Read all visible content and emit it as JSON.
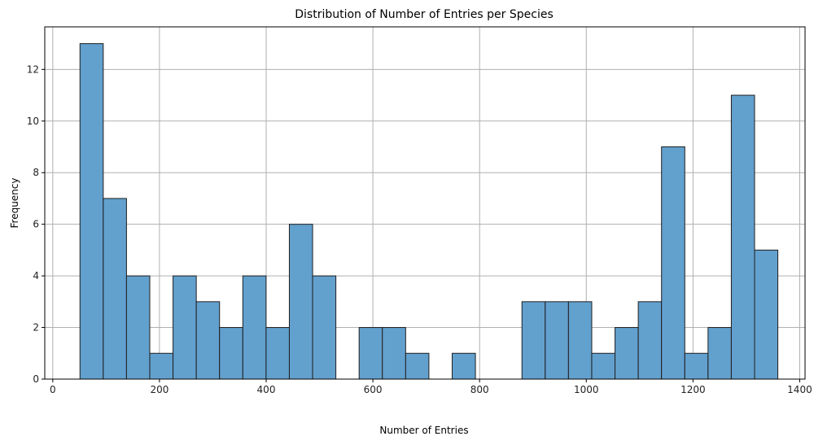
{
  "chart_data": {
    "type": "bar",
    "title": "Distribution of Number of Entries per Species",
    "xlabel": "Number of Entries",
    "ylabel": "Frequency",
    "xlim": [
      -15,
      1410
    ],
    "ylim": [
      0,
      13.65
    ],
    "grid": true,
    "bar_color": "#62a0ce",
    "edge_color": "#1f1f1f",
    "x_ticks": [
      {
        "value": 0,
        "label": "0"
      },
      {
        "value": 200,
        "label": "200"
      },
      {
        "value": 400,
        "label": "400"
      },
      {
        "value": 600,
        "label": "600"
      },
      {
        "value": 800,
        "label": "800"
      },
      {
        "value": 1000,
        "label": "1000"
      },
      {
        "value": 1200,
        "label": "1200"
      },
      {
        "value": 1400,
        "label": "1400"
      }
    ],
    "y_ticks": [
      {
        "value": 0,
        "label": "0"
      },
      {
        "value": 2,
        "label": "2"
      },
      {
        "value": 4,
        "label": "4"
      },
      {
        "value": 6,
        "label": "6"
      },
      {
        "value": 8,
        "label": "8"
      },
      {
        "value": 10,
        "label": "10"
      },
      {
        "value": 12,
        "label": "12"
      }
    ],
    "bins": [
      {
        "start": 51,
        "end": 94.6,
        "value": 13
      },
      {
        "start": 94.6,
        "end": 138.2,
        "value": 7
      },
      {
        "start": 138.2,
        "end": 181.8,
        "value": 4
      },
      {
        "start": 181.8,
        "end": 225.4,
        "value": 1
      },
      {
        "start": 225.4,
        "end": 269,
        "value": 4
      },
      {
        "start": 269,
        "end": 312.6,
        "value": 3
      },
      {
        "start": 312.6,
        "end": 356.2,
        "value": 2
      },
      {
        "start": 356.2,
        "end": 399.8,
        "value": 4
      },
      {
        "start": 399.8,
        "end": 443.4,
        "value": 2
      },
      {
        "start": 443.4,
        "end": 487,
        "value": 6
      },
      {
        "start": 487,
        "end": 530.6,
        "value": 4
      },
      {
        "start": 530.6,
        "end": 574.2,
        "value": 0
      },
      {
        "start": 574.2,
        "end": 617.8,
        "value": 2
      },
      {
        "start": 617.8,
        "end": 661.4,
        "value": 2
      },
      {
        "start": 661.4,
        "end": 705,
        "value": 1
      },
      {
        "start": 705,
        "end": 748.6,
        "value": 0
      },
      {
        "start": 748.6,
        "end": 792.2,
        "value": 1
      },
      {
        "start": 792.2,
        "end": 835.8,
        "value": 0
      },
      {
        "start": 835.8,
        "end": 879.4,
        "value": 0
      },
      {
        "start": 879.4,
        "end": 923,
        "value": 3
      },
      {
        "start": 923,
        "end": 966.6,
        "value": 3
      },
      {
        "start": 966.6,
        "end": 1010.2,
        "value": 3
      },
      {
        "start": 1010.2,
        "end": 1053.8,
        "value": 1
      },
      {
        "start": 1053.8,
        "end": 1097.4,
        "value": 2
      },
      {
        "start": 1097.4,
        "end": 1141,
        "value": 3
      },
      {
        "start": 1141,
        "end": 1184.6,
        "value": 9
      },
      {
        "start": 1184.6,
        "end": 1228.2,
        "value": 1
      },
      {
        "start": 1228.2,
        "end": 1271.8,
        "value": 2
      },
      {
        "start": 1271.8,
        "end": 1315.4,
        "value": 11
      },
      {
        "start": 1315.4,
        "end": 1359,
        "value": 5
      }
    ]
  }
}
